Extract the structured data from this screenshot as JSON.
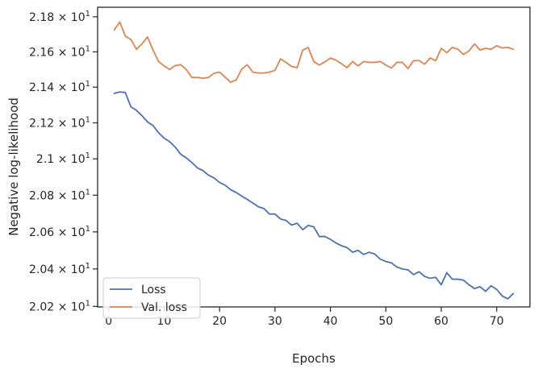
{
  "chart_data": {
    "type": "line",
    "xlabel": "Epochs",
    "ylabel": "Negative log-likelihood",
    "xlim": [
      -2,
      76
    ],
    "ylim": [
      20.197,
      21.855
    ],
    "yscale": "log",
    "grid": false,
    "legend_position": "lower-left",
    "x_ticks": [
      {
        "value": 0,
        "label": "0"
      },
      {
        "value": 10,
        "label": "10"
      },
      {
        "value": 20,
        "label": "20"
      },
      {
        "value": 30,
        "label": "30"
      },
      {
        "value": 40,
        "label": "40"
      },
      {
        "value": 50,
        "label": "50"
      },
      {
        "value": 60,
        "label": "60"
      },
      {
        "value": 70,
        "label": "70"
      }
    ],
    "y_ticks": [
      {
        "value": 20.2,
        "mantissa": "2.02",
        "base": "10",
        "exp": "1"
      },
      {
        "value": 20.4,
        "mantissa": "2.04",
        "base": "10",
        "exp": "1"
      },
      {
        "value": 20.6,
        "mantissa": "2.06",
        "base": "10",
        "exp": "1"
      },
      {
        "value": 20.8,
        "mantissa": "2.08",
        "base": "10",
        "exp": "1"
      },
      {
        "value": 21.0,
        "mantissa": "2.1",
        "base": "10",
        "exp": "1"
      },
      {
        "value": 21.2,
        "mantissa": "2.12",
        "base": "10",
        "exp": "1"
      },
      {
        "value": 21.4,
        "mantissa": "2.14",
        "base": "10",
        "exp": "1"
      },
      {
        "value": 21.6,
        "mantissa": "2.16",
        "base": "10",
        "exp": "1"
      },
      {
        "value": 21.8,
        "mantissa": "2.18",
        "base": "10",
        "exp": "1"
      }
    ],
    "x": [
      1,
      2,
      3,
      4,
      5,
      6,
      7,
      8,
      9,
      10,
      11,
      12,
      13,
      14,
      15,
      16,
      17,
      18,
      19,
      20,
      21,
      22,
      23,
      24,
      25,
      26,
      27,
      28,
      29,
      30,
      31,
      32,
      33,
      34,
      35,
      36,
      37,
      38,
      39,
      40,
      41,
      42,
      43,
      44,
      45,
      46,
      47,
      48,
      49,
      50,
      51,
      52,
      53,
      54,
      55,
      56,
      57,
      58,
      59,
      60,
      61,
      62,
      63,
      64,
      65,
      66,
      67,
      68,
      69,
      70,
      71,
      72,
      73
    ],
    "series": [
      {
        "name": "Loss",
        "color": "#4c72b0",
        "values": [
          21.365,
          21.373,
          21.37,
          21.29,
          21.27,
          21.24,
          21.205,
          21.185,
          21.145,
          21.115,
          21.095,
          21.065,
          21.025,
          21.005,
          20.98,
          20.95,
          20.935,
          20.91,
          20.895,
          20.87,
          20.855,
          20.83,
          20.815,
          20.795,
          20.777,
          20.757,
          20.737,
          20.727,
          20.697,
          20.697,
          20.67,
          20.662,
          20.637,
          20.647,
          20.612,
          20.635,
          20.627,
          20.575,
          20.575,
          20.56,
          20.54,
          20.525,
          20.515,
          20.49,
          20.5,
          20.478,
          20.49,
          20.48,
          20.453,
          20.44,
          20.433,
          20.41,
          20.4,
          20.395,
          20.37,
          20.385,
          20.36,
          20.35,
          20.355,
          20.315,
          20.38,
          20.345,
          20.345,
          20.34,
          20.315,
          20.295,
          20.305,
          20.28,
          20.31,
          20.29,
          20.255,
          20.24,
          20.268
        ]
      },
      {
        "name": "Val. loss",
        "color": "#dd8452",
        "values": [
          21.725,
          21.77,
          21.69,
          21.67,
          21.615,
          21.645,
          21.685,
          21.61,
          21.545,
          21.52,
          21.5,
          21.522,
          21.527,
          21.5,
          21.455,
          21.455,
          21.45,
          21.455,
          21.478,
          21.485,
          21.457,
          21.428,
          21.44,
          21.502,
          21.527,
          21.485,
          21.48,
          21.48,
          21.485,
          21.495,
          21.56,
          21.54,
          21.517,
          21.51,
          21.61,
          21.625,
          21.545,
          21.525,
          21.543,
          21.565,
          21.553,
          21.532,
          21.51,
          21.545,
          21.52,
          21.545,
          21.54,
          21.54,
          21.545,
          21.525,
          21.508,
          21.54,
          21.54,
          21.505,
          21.55,
          21.55,
          21.53,
          21.565,
          21.55,
          21.62,
          21.595,
          21.625,
          21.615,
          21.585,
          21.605,
          21.645,
          21.61,
          21.62,
          21.615,
          21.635,
          21.622,
          21.625,
          21.615
        ]
      }
    ]
  }
}
